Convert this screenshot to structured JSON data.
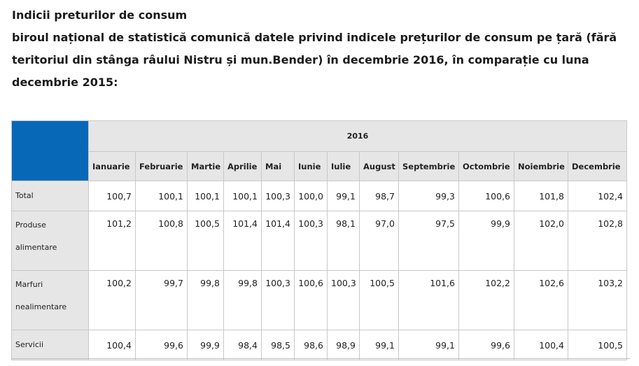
{
  "heading": {
    "title": "Indicii preturilor de consum",
    "lines": [
      "biroul național de statistică comunică datele privind indicele prețurilor de consum pe țară (fără",
      "teritoriul din stânga râului Nistru și mun.Bender) în decembrie 2016, în comparație cu luna",
      "decembrie 2015:"
    ]
  },
  "table": {
    "year": "2016",
    "months": [
      "Ianuarie",
      "Februarie",
      "Martie",
      "Aprilie",
      "Mai",
      "Iunie",
      "Iulie",
      "August",
      "Septembrie",
      "Octombrie",
      "Noiembrie",
      "Decembrie"
    ],
    "rows": [
      {
        "label_lines": [
          "Total"
        ],
        "values": [
          "100,7",
          "100,1",
          "100,1",
          "100,1",
          "100,3",
          "100,0",
          "99,1",
          "98,7",
          "99,3",
          "100,6",
          "101,8",
          "102,4"
        ]
      },
      {
        "label_lines": [
          "Produse",
          "alimentare"
        ],
        "values": [
          "101,2",
          "100,8",
          "100,5",
          "101,4",
          "101,4",
          "100,3",
          "98,1",
          "97,0",
          "97,5",
          "99,9",
          "102,0",
          "102,8"
        ]
      },
      {
        "label_lines": [
          "Marfuri",
          "nealimentare"
        ],
        "values": [
          "100,2",
          "99,7",
          "99,8",
          "99,8",
          "100,3",
          "100,6",
          "100,3",
          "100,5",
          "101,6",
          "102,2",
          "102,6",
          "103,2"
        ]
      },
      {
        "label_lines": [
          "Servicii"
        ],
        "values": [
          "100,4",
          "99,6",
          "99,9",
          "98,4",
          "98,5",
          "98,6",
          "98,9",
          "99,1",
          "99,1",
          "99,6",
          "100,4",
          "100,5"
        ]
      }
    ]
  },
  "colors": {
    "corner": "#0868b8",
    "header_bg": "#e6e6e6",
    "border": "#c8c8c8"
  }
}
